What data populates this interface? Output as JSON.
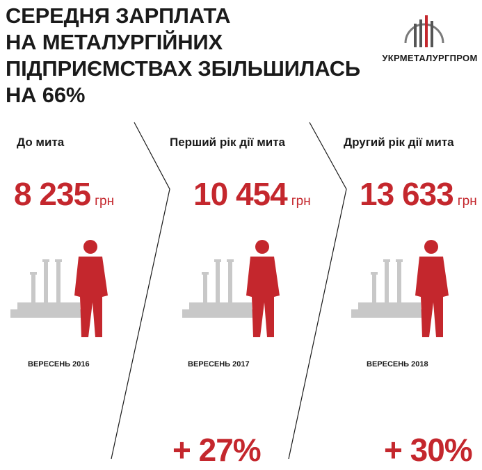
{
  "title": {
    "line1": "СЕРЕДНЯ ЗАРПЛАТА",
    "line2": "НА МЕТАЛУРГІЙНИХ",
    "line3": "ПІДПРИЄМСТВАХ ЗБІЛЬШИЛАСЬ",
    "line4": "НА 66%"
  },
  "logo": {
    "text": "УКРМЕТАЛУРГПРОМ",
    "icon": "ukrmetalurgprom-logo-icon"
  },
  "colors": {
    "accent": "#c4272d",
    "gray": "#c8c8c8",
    "text": "#1a1a1a"
  },
  "periods": [
    {
      "label": "До мита",
      "amount": "8 235",
      "unit": "грн",
      "date": "ВЕРЕСЕНЬ 2016",
      "change": ""
    },
    {
      "label": "Перший рік дії мита",
      "amount": "10 454",
      "unit": "грн",
      "date": "ВЕРЕСЕНЬ 2017",
      "change": "+ 27%"
    },
    {
      "label": "Другий рік дії мита",
      "amount": "13 633",
      "unit": "грн",
      "date": "ВЕРЕСЕНЬ 2018",
      "change": "+ 30%"
    }
  ]
}
